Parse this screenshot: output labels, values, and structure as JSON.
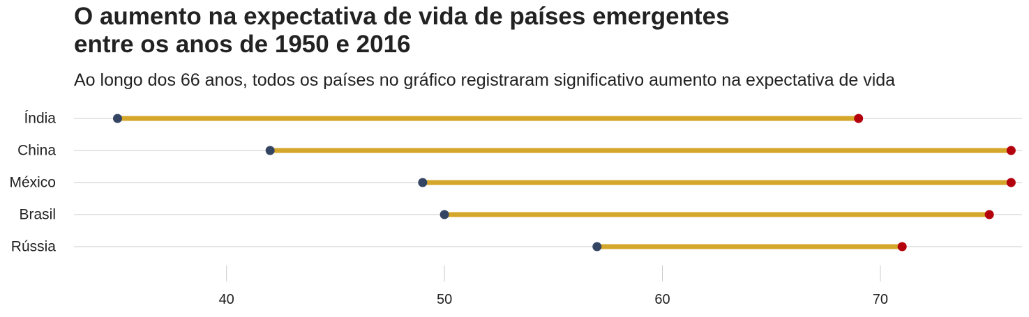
{
  "colors": {
    "segment": "#D4A62A",
    "start_point": "#344563",
    "end_point": "#B3000C",
    "grid": "#cbcbcb",
    "text": "#222222"
  },
  "chart_data": {
    "type": "dumbbell",
    "title_lines": [
      "O aumento na expectativa de vida de países emergentes",
      "entre os anos de 1950 e 2016"
    ],
    "subtitle": "Ao longo dos 66 anos, todos os países no gráfico registraram significativo aumento na expectativa de vida",
    "xlabel": "",
    "ylabel": "",
    "xlim": [
      33,
      76.5
    ],
    "x_ticks": [
      40,
      50,
      60,
      70
    ],
    "x_tick_labels": [
      "40",
      "50",
      "60",
      "70"
    ],
    "grid": {
      "horizontal": true,
      "vertical": false
    },
    "legend": "none",
    "categories": [
      "Índia",
      "China",
      "México",
      "Brasil",
      "Rússia"
    ],
    "series": [
      {
        "year": 1950,
        "values": [
          35,
          42,
          49,
          50,
          57
        ]
      },
      {
        "year": 2016,
        "values": [
          69,
          76,
          76,
          75,
          71
        ]
      }
    ]
  }
}
